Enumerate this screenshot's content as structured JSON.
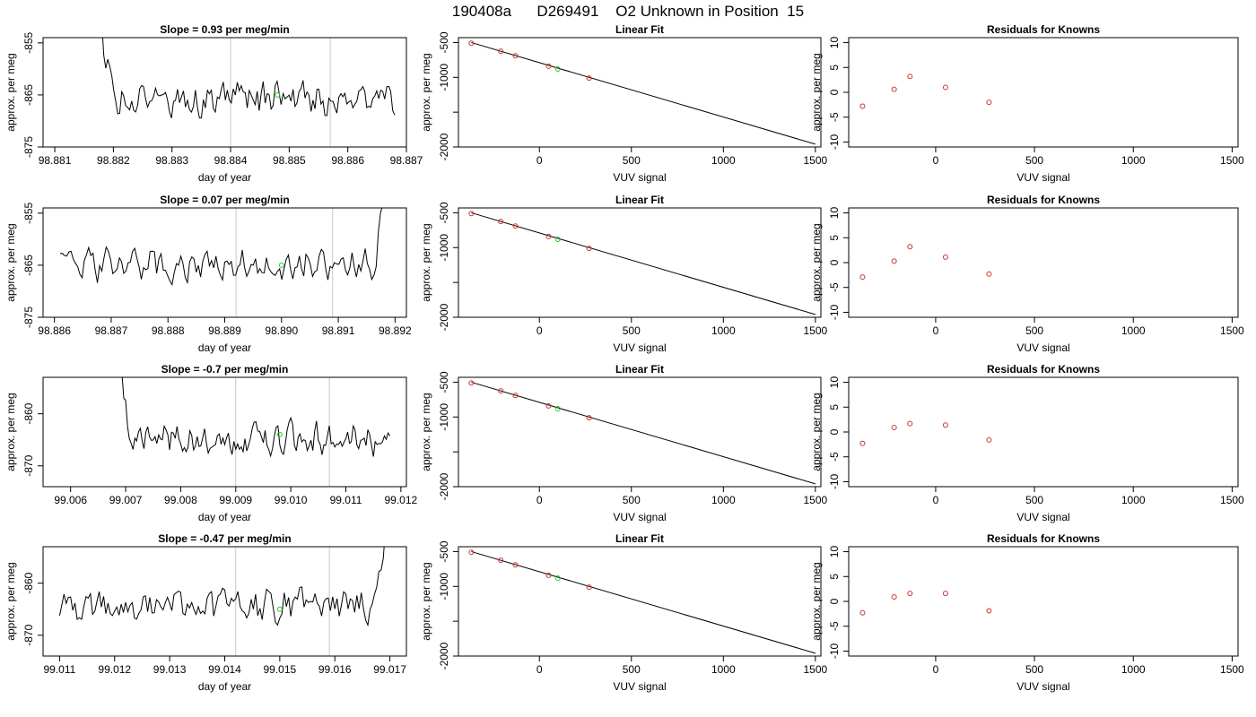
{
  "title": "190408a      D269491    O2 Unknown in Position  15",
  "colors": {
    "line": "#000000",
    "vline": "#c8c8c8",
    "known": "#cc3333",
    "unknown": "#22cc22"
  },
  "chart_data": [
    {
      "type": "line",
      "title": "Slope =  0.93  per meg/min",
      "xlabel": "day of year",
      "ylabel": "approx. per meg",
      "xlim": [
        98.8808,
        98.887
      ],
      "ylim": [
        -875,
        -854
      ],
      "xticks": [
        "98.881",
        "98.882",
        "98.883",
        "98.884",
        "98.885",
        "98.886",
        "98.887"
      ],
      "yticks": [
        "-855",
        "-865",
        "-875"
      ],
      "vlines": [
        98.884,
        98.8857
      ],
      "point": [
        98.8848,
        -865.0
      ],
      "trace": {
        "x0": 98.8817,
        "x1": 98.8868,
        "seed": 1,
        "base": -865.8,
        "amp": 2.6,
        "start_spike": true,
        "end_spike": false
      }
    },
    {
      "type": "scatter",
      "title": "Linear Fit",
      "xlabel": "VUV signal",
      "ylabel": "approx. per meg",
      "xlim": [
        -440,
        1530
      ],
      "ylim": [
        -2000,
        -430
      ],
      "xticks": [
        "0",
        "500",
        "1000",
        "1500"
      ],
      "yticks": [
        "-500",
        "-1000",
        "",
        "-2000"
      ],
      "knowns": [
        [
          -370,
          -510
        ],
        [
          -210,
          -625
        ],
        [
          -130,
          -690
        ],
        [
          50,
          -840
        ],
        [
          270,
          -1010
        ]
      ],
      "unknown": [
        [
          100,
          -880
        ]
      ],
      "fit": [
        [
          -370,
          -500
        ],
        [
          1500,
          -1960
        ]
      ]
    },
    {
      "type": "scatter",
      "title": "Residuals for Knowns",
      "xlabel": "VUV signal",
      "ylabel": "approx. per meg",
      "xlim": [
        -440,
        1530
      ],
      "ylim": [
        -11,
        11
      ],
      "xticks": [
        "0",
        "500",
        "1000",
        "1500"
      ],
      "yticks": [
        "-10",
        "-5",
        "0",
        "5",
        "10"
      ],
      "points": [
        [
          -370,
          -2.8
        ],
        [
          -210,
          0.6
        ],
        [
          -130,
          3.2
        ],
        [
          50,
          1.0
        ],
        [
          270,
          -2.0
        ]
      ]
    },
    {
      "type": "line",
      "title": "Slope =  0.07  per meg/min",
      "xlabel": "day of year",
      "ylabel": "approx. per meg",
      "xlim": [
        98.8858,
        98.8922
      ],
      "ylim": [
        -875,
        -854
      ],
      "xticks": [
        "98.886",
        "98.887",
        "98.888",
        "98.889",
        "98.890",
        "98.891",
        "98.892"
      ],
      "yticks": [
        "-855",
        "-865",
        "-875"
      ],
      "vlines": [
        98.8892,
        98.8909
      ],
      "point": [
        98.89,
        -865.0
      ],
      "trace": {
        "x0": 98.8861,
        "x1": 98.8919,
        "seed": 2,
        "base": -865.0,
        "amp": 2.6,
        "start_spike": false,
        "end_spike": true
      }
    },
    {
      "type": "scatter",
      "title": "Linear Fit",
      "xlabel": "VUV signal",
      "ylabel": "approx. per meg",
      "xlim": [
        -440,
        1530
      ],
      "ylim": [
        -2000,
        -430
      ],
      "xticks": [
        "0",
        "500",
        "1000",
        "1500"
      ],
      "yticks": [
        "-500",
        "-1000",
        "",
        "-2000"
      ],
      "knowns": [
        [
          -370,
          -510
        ],
        [
          -210,
          -625
        ],
        [
          -130,
          -690
        ],
        [
          50,
          -840
        ],
        [
          270,
          -1010
        ]
      ],
      "unknown": [
        [
          100,
          -880
        ]
      ],
      "fit": [
        [
          -370,
          -500
        ],
        [
          1500,
          -1960
        ]
      ]
    },
    {
      "type": "scatter",
      "title": "Residuals for Knowns",
      "xlabel": "VUV signal",
      "ylabel": "approx. per meg",
      "xlim": [
        -440,
        1530
      ],
      "ylim": [
        -11,
        11
      ],
      "xticks": [
        "0",
        "500",
        "1000",
        "1500"
      ],
      "yticks": [
        "-10",
        "-5",
        "0",
        "5",
        "10"
      ],
      "points": [
        [
          -370,
          -2.9
        ],
        [
          -210,
          0.3
        ],
        [
          -130,
          3.2
        ],
        [
          50,
          1.1
        ],
        [
          270,
          -2.3
        ]
      ]
    },
    {
      "type": "line",
      "title": "Slope =  -0.7  per meg/min",
      "xlabel": "day of year",
      "ylabel": "approx. per meg",
      "xlim": [
        99.0055,
        99.0121
      ],
      "ylim": [
        -874,
        -853
      ],
      "xticks": [
        "99.006",
        "99.007",
        "99.008",
        "99.009",
        "99.010",
        "99.011",
        "99.012"
      ],
      "yticks": [
        "-860",
        "-870"
      ],
      "vlines": [
        99.009,
        99.0107
      ],
      "point": [
        99.0098,
        -864.0
      ],
      "trace": {
        "x0": 99.0068,
        "x1": 99.0118,
        "seed": 3,
        "base": -864.8,
        "amp": 2.4,
        "start_spike": true,
        "end_spike": false
      }
    },
    {
      "type": "scatter",
      "title": "Linear Fit",
      "xlabel": "VUV signal",
      "ylabel": "approx. per meg",
      "xlim": [
        -440,
        1530
      ],
      "ylim": [
        -2000,
        -430
      ],
      "xticks": [
        "0",
        "500",
        "1000",
        "1500"
      ],
      "yticks": [
        "-500",
        "-1000",
        "",
        "-2000"
      ],
      "knowns": [
        [
          -370,
          -510
        ],
        [
          -210,
          -625
        ],
        [
          -130,
          -690
        ],
        [
          50,
          -840
        ],
        [
          270,
          -1010
        ]
      ],
      "unknown": [
        [
          100,
          -880
        ]
      ],
      "fit": [
        [
          -370,
          -500
        ],
        [
          1500,
          -1960
        ]
      ]
    },
    {
      "type": "scatter",
      "title": "Residuals for Knowns",
      "xlabel": "VUV signal",
      "ylabel": "approx. per meg",
      "xlim": [
        -440,
        1530
      ],
      "ylim": [
        -11,
        11
      ],
      "xticks": [
        "0",
        "500",
        "1000",
        "1500"
      ],
      "yticks": [
        "-10",
        "-5",
        "0",
        "5",
        "10"
      ],
      "points": [
        [
          -370,
          -2.3
        ],
        [
          -210,
          0.9
        ],
        [
          -130,
          1.7
        ],
        [
          50,
          1.4
        ],
        [
          270,
          -1.6
        ]
      ]
    },
    {
      "type": "line",
      "title": "Slope =  -0.47  per meg/min",
      "xlabel": "day of year",
      "ylabel": "approx. per meg",
      "xlim": [
        99.0107,
        99.0173
      ],
      "ylim": [
        -874,
        -853
      ],
      "xticks": [
        "99.011",
        "99.012",
        "99.013",
        "99.014",
        "99.015",
        "99.016",
        "99.017"
      ],
      "yticks": [
        "-860",
        "-870"
      ],
      "vlines": [
        99.0142,
        99.0159
      ],
      "point": [
        99.015,
        -865.0
      ],
      "trace": {
        "x0": 99.011,
        "x1": 99.017,
        "seed": 4,
        "base": -864.3,
        "amp": 2.4,
        "start_spike": false,
        "end_spike": true
      }
    },
    {
      "type": "scatter",
      "title": "Linear Fit",
      "xlabel": "VUV signal",
      "ylabel": "approx. per meg",
      "xlim": [
        -440,
        1530
      ],
      "ylim": [
        -2000,
        -430
      ],
      "xticks": [
        "0",
        "500",
        "1000",
        "1500"
      ],
      "yticks": [
        "-500",
        "-1000",
        "",
        "-2000"
      ],
      "knowns": [
        [
          -370,
          -510
        ],
        [
          -210,
          -625
        ],
        [
          -130,
          -690
        ],
        [
          50,
          -840
        ],
        [
          270,
          -1010
        ]
      ],
      "unknown": [
        [
          100,
          -880
        ]
      ],
      "fit": [
        [
          -370,
          -500
        ],
        [
          1500,
          -1960
        ]
      ]
    },
    {
      "type": "scatter",
      "title": "Residuals for Knowns",
      "xlabel": "VUV signal",
      "ylabel": "approx. per meg",
      "xlim": [
        -440,
        1530
      ],
      "ylim": [
        -11,
        11
      ],
      "xticks": [
        "0",
        "500",
        "1000",
        "1500"
      ],
      "yticks": [
        "-10",
        "-5",
        "0",
        "5",
        "10"
      ],
      "points": [
        [
          -370,
          -2.3
        ],
        [
          -210,
          0.9
        ],
        [
          -130,
          1.6
        ],
        [
          50,
          1.6
        ],
        [
          270,
          -1.9
        ]
      ]
    }
  ]
}
